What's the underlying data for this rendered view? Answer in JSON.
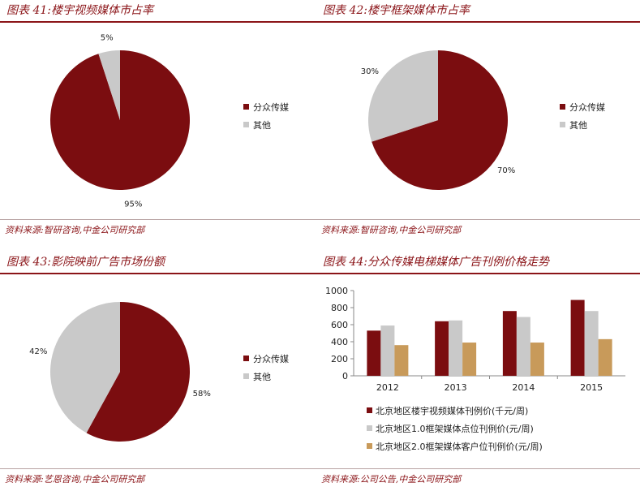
{
  "colors": {
    "dark_red": "#7b0d10",
    "light_gray": "#c9c9c9",
    "tan": "#c89a5a",
    "accent": "#8b1418"
  },
  "panels": [
    {
      "title": "图表 41:楼宇视频媒体市占率",
      "source": "资料来源:智研咨询,中金公司研究部"
    },
    {
      "title": "图表 42:楼宇框架媒体市占率",
      "source": "资料来源:智研咨询,中金公司研究部"
    },
    {
      "title": "图表 43:影院映前广告市场份额",
      "source": "资料来源:艺恩咨询,中金公司研究部"
    },
    {
      "title": "图表 44:分众传媒电梯媒体广告刊例价格走势",
      "source": "资料来源:公司公告,中金公司研究部"
    }
  ],
  "chart_data": [
    {
      "type": "pie",
      "labels": [
        "分众传媒",
        "其他"
      ],
      "values": [
        95,
        5
      ],
      "value_labels": [
        "95%",
        "5%"
      ],
      "legend": "right"
    },
    {
      "type": "pie",
      "labels": [
        "分众传媒",
        "其他"
      ],
      "values": [
        70,
        30
      ],
      "value_labels": [
        "70%",
        "30%"
      ],
      "legend": "right"
    },
    {
      "type": "pie",
      "labels": [
        "分众传媒",
        "其他"
      ],
      "values": [
        58,
        42
      ],
      "value_labels": [
        "58%",
        "42%"
      ],
      "legend": "right"
    },
    {
      "type": "bar",
      "categories": [
        "2012",
        "2013",
        "2014",
        "2015"
      ],
      "series": [
        {
          "name": "北京地区楼宇视频媒体刊例价(千元/周)",
          "values": [
            530,
            640,
            760,
            890
          ]
        },
        {
          "name": "北京地区1.0框架媒体点位刊例价(元/周)",
          "values": [
            590,
            650,
            690,
            760
          ]
        },
        {
          "name": "北京地区2.0框架媒体客户位刊例价(元/周)",
          "values": [
            360,
            390,
            390,
            430
          ]
        }
      ],
      "ylim": [
        0,
        1000
      ],
      "yticks": [
        0,
        200,
        400,
        600,
        800,
        1000
      ],
      "legend": "bottom",
      "grid": false
    }
  ]
}
